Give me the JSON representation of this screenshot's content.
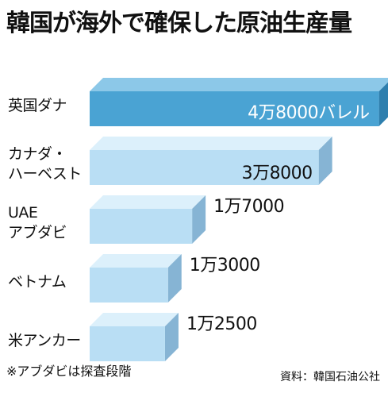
{
  "title": "韓国が海外で確保した原油生産量",
  "chart_data": {
    "type": "bar",
    "orientation": "horizontal",
    "categories": [
      "英国ダナ",
      "カナダ・\nハーベスト",
      "UAE\nアブダビ",
      "ベトナム",
      "米アンカー"
    ],
    "values": [
      48000,
      38000,
      17000,
      13000,
      12500
    ],
    "value_labels": [
      "4万8000バレル",
      "3万8000",
      "1万7000",
      "1万3000",
      "1万2500"
    ],
    "highlight_index": 0,
    "xlim": [
      0,
      52000
    ],
    "grid": false,
    "title": "韓国が海外で確保した原油生産量"
  },
  "colors": {
    "highlight_front": "#4aa3d3",
    "highlight_top": "#8cc8e8",
    "highlight_side": "#2e7fae",
    "bar_front": "#b9def4",
    "bar_top": "#dcf0fb",
    "bar_side": "#86b4d4"
  },
  "footnote": "※アブダビは探査段階",
  "source": "資料：韓国石油公社"
}
